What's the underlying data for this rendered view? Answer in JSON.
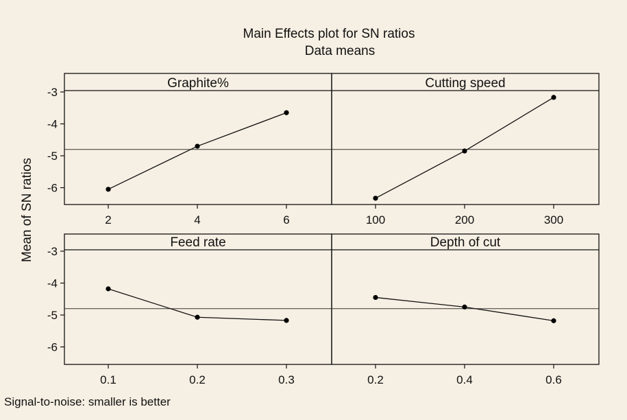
{
  "chart_data": {
    "type": "line",
    "title": "Main Effects plot for SN ratios",
    "subtitle": "Data means",
    "ylabel": "Mean of SN ratios",
    "footnote": "Signal-to-noise: smaller is better",
    "ylim": [
      -6.6,
      -2.6
    ],
    "yticks": [
      -3,
      -4,
      -5,
      -6
    ],
    "ytick_labels": [
      "-3",
      "-4",
      "-5",
      "-6"
    ],
    "grand_mean": -4.8,
    "panels": [
      {
        "name": "Graphite%",
        "x": [
          2,
          4,
          6
        ],
        "x_labels": [
          "2",
          "4",
          "6"
        ],
        "values": [
          -6.05,
          -4.7,
          -3.65
        ]
      },
      {
        "name": "Cutting speed",
        "x": [
          100,
          200,
          300
        ],
        "x_labels": [
          "100",
          "200",
          "300"
        ],
        "values": [
          -6.33,
          -4.85,
          -3.17
        ]
      },
      {
        "name": "Feed rate",
        "x": [
          0.1,
          0.2,
          0.3
        ],
        "x_labels": [
          "0.1",
          "0.2",
          "0.3"
        ],
        "values": [
          -4.18,
          -5.07,
          -5.17
        ]
      },
      {
        "name": "Depth of cut",
        "x": [
          0.2,
          0.4,
          0.6
        ],
        "x_labels": [
          "0.2",
          "0.4",
          "0.6"
        ],
        "values": [
          -4.45,
          -4.75,
          -5.18
        ]
      }
    ]
  }
}
